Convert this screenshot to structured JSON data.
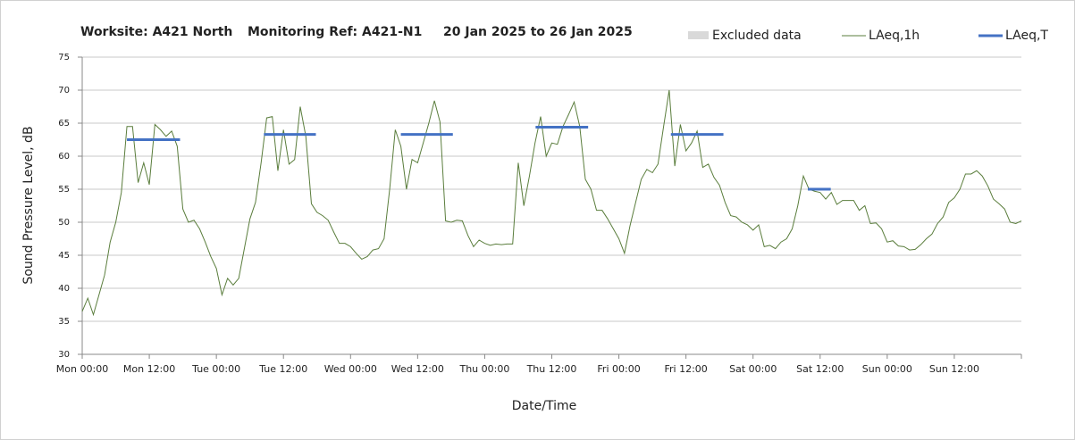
{
  "chart_data": {
    "type": "line",
    "title_parts": [
      "Worksite: A421 North",
      "Monitoring Ref: A421-N1",
      "20 Jan 2025 to 26 Jan 2025"
    ],
    "x_label": "Date/Time",
    "y_label": "Sound Pressure Level, dB",
    "excluded": {
      "name": "Excluded data",
      "color": "#d9d9d9"
    },
    "xlim": [
      0,
      168
    ],
    "xticks": [
      {
        "value": 0,
        "label": "Mon 00:00"
      },
      {
        "value": 12,
        "label": "Mon 12:00"
      },
      {
        "value": 24,
        "label": "Tue 00:00"
      },
      {
        "value": 36,
        "label": "Tue 12:00"
      },
      {
        "value": 48,
        "label": "Wed 00:00"
      },
      {
        "value": 60,
        "label": "Wed 12:00"
      },
      {
        "value": 72,
        "label": "Thu 00:00"
      },
      {
        "value": 84,
        "label": "Thu 12:00"
      },
      {
        "value": 96,
        "label": "Fri 00:00"
      },
      {
        "value": 108,
        "label": "Fri 12:00"
      },
      {
        "value": 120,
        "label": "Sat 00:00"
      },
      {
        "value": 132,
        "label": "Sat 12:00"
      },
      {
        "value": 144,
        "label": "Sun 00:00"
      },
      {
        "value": 156,
        "label": "Sun 12:00"
      }
    ],
    "ylim": [
      30,
      75
    ],
    "yticks": [
      30,
      35,
      40,
      45,
      50,
      55,
      60,
      65,
      70,
      75
    ],
    "grid": true,
    "series": [
      {
        "name": "LAeq,1h",
        "color": "#5a7d3c",
        "width": 1,
        "x": [
          0,
          1,
          2,
          3,
          4,
          5,
          6,
          7,
          8,
          9,
          10,
          11,
          12,
          13,
          14,
          15,
          16,
          17,
          18,
          19,
          20,
          21,
          22,
          23,
          24,
          25,
          26,
          27,
          28,
          29,
          30,
          31,
          32,
          33,
          34,
          35,
          36,
          37,
          38,
          39,
          40,
          41,
          42,
          43,
          44,
          45,
          46,
          47,
          48,
          49,
          50,
          51,
          52,
          53,
          54,
          55,
          56,
          57,
          58,
          59,
          60,
          61,
          62,
          63,
          64,
          65,
          66,
          67,
          68,
          69,
          70,
          71,
          72,
          73,
          74,
          75,
          76,
          77,
          78,
          79,
          80,
          81,
          82,
          83,
          84,
          85,
          86,
          87,
          88,
          89,
          90,
          91,
          92,
          93,
          94,
          95,
          96,
          97,
          98,
          99,
          100,
          101,
          102,
          103,
          104,
          105,
          106,
          107,
          108,
          109,
          110,
          111,
          112,
          113,
          114,
          115,
          116,
          117,
          118,
          119,
          120,
          121,
          122,
          123,
          124,
          125,
          126,
          127,
          128,
          129,
          130,
          131,
          132,
          133,
          134,
          135,
          136,
          137,
          138,
          139,
          140,
          141,
          142,
          143,
          144,
          145,
          146,
          147,
          148,
          149,
          150,
          151,
          152,
          153,
          154,
          155,
          156,
          157,
          158,
          159,
          160,
          161,
          162,
          163,
          164,
          165,
          166,
          167,
          168
        ],
        "values": [
          36.5,
          38.5,
          36,
          39,
          42,
          47,
          50,
          54.5,
          64.5,
          64.5,
          56,
          59,
          55.7,
          64.8,
          64,
          63,
          63.8,
          61.5,
          52,
          50,
          50.3,
          49,
          47,
          44.8,
          43,
          39,
          41.5,
          40.5,
          41.5,
          46,
          50.5,
          53,
          59,
          65.8,
          66,
          57.8,
          64,
          58.8,
          59.5,
          67.5,
          63,
          52.8,
          51.5,
          51,
          50.3,
          48.5,
          46.8,
          46.8,
          46.3,
          45.3,
          44.4,
          44.8,
          45.8,
          46,
          47.5,
          55,
          64,
          61.5,
          55,
          59.5,
          59,
          62,
          65,
          68.4,
          65.2,
          50.2,
          50,
          50.3,
          50.2,
          48,
          46.3,
          47.3,
          46.8,
          46.5,
          46.7,
          46.6,
          46.7,
          46.7,
          59,
          52.5,
          57,
          62,
          66,
          60,
          62,
          61.8,
          64.5,
          66.3,
          68.2,
          64.5,
          56.5,
          55,
          51.8,
          51.8,
          50.5,
          49,
          47.5,
          45.3,
          49.5,
          53,
          56.5,
          58,
          57.5,
          58.8,
          64.5,
          70,
          58.5,
          64.8,
          60.8,
          62,
          63.8,
          58.3,
          58.8,
          56.8,
          55.6,
          53,
          51,
          50.8,
          50,
          49.6,
          48.8,
          49.6,
          46.3,
          46.5,
          46,
          47,
          47.5,
          49,
          52.5,
          57,
          55,
          54.7,
          54.5,
          53.5,
          54.5,
          52.7,
          53.3,
          53.3,
          53.3,
          51.8,
          52.5,
          49.8,
          49.9,
          49,
          47,
          47.2,
          46.4,
          46.3,
          45.8,
          45.9,
          46.6,
          47.5,
          48.2,
          49.8,
          50.8,
          53,
          53.7,
          55,
          57.3,
          57.3,
          57.8,
          57,
          55.5,
          53.5,
          52.8,
          52,
          50,
          49.8,
          50.2
        ]
      },
      {
        "name": "LAeq,T",
        "color": "#4472c4",
        "width": 3,
        "x": [
          8,
          17.5,
          null,
          32.5,
          41.8,
          null,
          57,
          66.3,
          null,
          81.1,
          90.5,
          null,
          105.3,
          114.7,
          null,
          129.8,
          133.9
        ],
        "values": [
          62.5,
          62.5,
          null,
          63.3,
          63.3,
          null,
          63.3,
          63.3,
          null,
          64.4,
          64.4,
          null,
          63.3,
          63.3,
          null,
          55,
          55
        ]
      }
    ]
  }
}
